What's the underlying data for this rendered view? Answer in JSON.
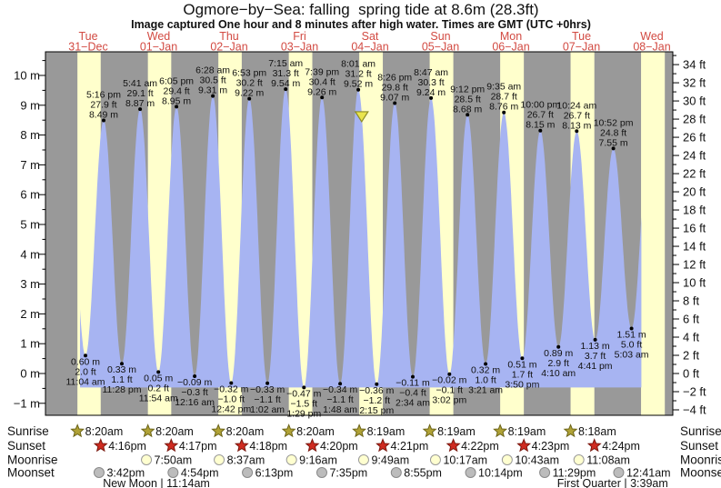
{
  "chart_data": {
    "type": "area",
    "title": "Ogmore−by−Sea: falling  spring tide at 8.6m (28.3ft)",
    "subtitle": "Image captured One hour and 8 minutes after high water. Times are GMT (UTC +0hrs)",
    "y_axis_left": {
      "unit": "m",
      "tick_step": 1,
      "ticks": [
        -1,
        0,
        1,
        2,
        3,
        4,
        5,
        6,
        7,
        8,
        9,
        10
      ],
      "range_m": [
        -1.4,
        10.79
      ]
    },
    "y_axis_right": {
      "unit": "ft",
      "tick_step": 2,
      "ticks": [
        -4,
        -2,
        0,
        2,
        4,
        6,
        8,
        10,
        12,
        14,
        16,
        18,
        20,
        22,
        24,
        26,
        28,
        30,
        32,
        34
      ]
    },
    "days": [
      {
        "dow": "Tue",
        "date": "31−Dec"
      },
      {
        "dow": "Wed",
        "date": "01−Jan"
      },
      {
        "dow": "Thu",
        "date": "02−Jan"
      },
      {
        "dow": "Fri",
        "date": "03−Jan"
      },
      {
        "dow": "Sat",
        "date": "04−Jan"
      },
      {
        "dow": "Sun",
        "date": "05−Jan"
      },
      {
        "dow": "Mon",
        "date": "06−Jan"
      },
      {
        "dow": "Tue",
        "date": "07−Jan"
      },
      {
        "dow": "Wed",
        "date": "08−Jan"
      }
    ],
    "tide_events": [
      {
        "day": 0,
        "hour": 11.0667,
        "type": "low",
        "value_m": 0.6,
        "labels": [
          "0.60 m",
          "2.0 ft",
          "11:04 am"
        ]
      },
      {
        "day": 0,
        "hour": 17.2667,
        "type": "high",
        "value_m": 8.49,
        "labels": [
          "5:16 pm",
          "27.9 ft",
          "8.49 m"
        ]
      },
      {
        "day": 0,
        "hour": 23.4667,
        "type": "low",
        "value_m": 0.33,
        "labels": [
          "0.33 m",
          "1.1 ft",
          "11:28 pm"
        ]
      },
      {
        "day": 1,
        "hour": 5.6833,
        "type": "high",
        "value_m": 8.87,
        "labels": [
          "5:41 am",
          "29.1 ft",
          "8.87 m"
        ]
      },
      {
        "day": 1,
        "hour": 11.9,
        "type": "low",
        "value_m": 0.05,
        "labels": [
          "0.05 m",
          "0.2 ft",
          "11:54 am"
        ]
      },
      {
        "day": 1,
        "hour": 18.0833,
        "type": "high",
        "value_m": 8.95,
        "labels": [
          "6:05 pm",
          "29.4 ft",
          "8.95 m"
        ]
      },
      {
        "day": 2,
        "hour": 0.2667,
        "type": "low",
        "value_m": -0.09,
        "labels": [
          "−0.09 m",
          "−0.3 ft",
          "12:16 am"
        ]
      },
      {
        "day": 2,
        "hour": 6.4667,
        "type": "high",
        "value_m": 9.31,
        "labels": [
          "6:28 am",
          "30.5 ft",
          "9.31 m"
        ]
      },
      {
        "day": 2,
        "hour": 12.7,
        "type": "low",
        "value_m": -0.32,
        "labels": [
          "−0.32 m",
          "−1.0 ft",
          "12:42 pm"
        ]
      },
      {
        "day": 2,
        "hour": 18.8833,
        "type": "high",
        "value_m": 9.22,
        "labels": [
          "6:53 pm",
          "30.2 ft",
          "9.22 m"
        ]
      },
      {
        "day": 3,
        "hour": 1.0333,
        "type": "low",
        "value_m": -0.33,
        "labels": [
          "−0.33 m",
          "−1.1 ft",
          "1:02 am"
        ]
      },
      {
        "day": 3,
        "hour": 7.25,
        "type": "high",
        "value_m": 9.54,
        "labels": [
          "7:15 am",
          "31.3 ft",
          "9.54 m"
        ]
      },
      {
        "day": 3,
        "hour": 13.4833,
        "type": "low",
        "value_m": -0.47,
        "labels": [
          "−0.47 m",
          "−1.5 ft",
          "1:29 pm"
        ]
      },
      {
        "day": 3,
        "hour": 19.65,
        "type": "high",
        "value_m": 9.26,
        "labels": [
          "7:39 pm",
          "30.4 ft",
          "9.26 m"
        ]
      },
      {
        "day": 4,
        "hour": 1.8,
        "type": "low",
        "value_m": -0.34,
        "labels": [
          "−0.34 m",
          "−1.1 ft",
          "1:48 am"
        ]
      },
      {
        "day": 4,
        "hour": 8.0167,
        "type": "high",
        "value_m": 9.52,
        "labels": [
          "8:01 am",
          "31.2 ft",
          "9.52 m"
        ]
      },
      {
        "day": 4,
        "hour": 14.25,
        "type": "low",
        "value_m": -0.36,
        "labels": [
          "−0.36 m",
          "−1.2 ft",
          "2:15 pm"
        ]
      },
      {
        "day": 4,
        "hour": 20.4333,
        "type": "high",
        "value_m": 9.07,
        "labels": [
          "8:26 pm",
          "29.8 ft",
          "9.07 m"
        ]
      },
      {
        "day": 5,
        "hour": 2.5667,
        "type": "low",
        "value_m": -0.11,
        "labels": [
          "−0.11 m",
          "−0.4 ft",
          "2:34 am"
        ]
      },
      {
        "day": 5,
        "hour": 8.7833,
        "type": "high",
        "value_m": 9.24,
        "labels": [
          "8:47 am",
          "30.3 ft",
          "9.24 m"
        ]
      },
      {
        "day": 5,
        "hour": 15.0333,
        "type": "low",
        "value_m": -0.02,
        "labels": [
          "−0.02 m",
          "−0.1 ft",
          "3:02 pm"
        ]
      },
      {
        "day": 5,
        "hour": 21.2,
        "type": "high",
        "value_m": 8.68,
        "labels": [
          "9:12 pm",
          "28.5 ft",
          "8.68 m"
        ]
      },
      {
        "day": 6,
        "hour": 3.35,
        "type": "low",
        "value_m": 0.32,
        "labels": [
          "0.32 m",
          "1.0 ft",
          "3:21 am"
        ]
      },
      {
        "day": 6,
        "hour": 9.5833,
        "type": "high",
        "value_m": 8.76,
        "labels": [
          "9:35 am",
          "28.7 ft",
          "8.76 m"
        ]
      },
      {
        "day": 6,
        "hour": 15.8333,
        "type": "low",
        "value_m": 0.51,
        "labels": [
          "0.51 m",
          "1.7 ft",
          "3:50 pm"
        ]
      },
      {
        "day": 6,
        "hour": 22.0,
        "type": "high",
        "value_m": 8.15,
        "labels": [
          "10:00 pm",
          "26.7 ft",
          "8.15 m"
        ]
      },
      {
        "day": 7,
        "hour": 4.1667,
        "type": "low",
        "value_m": 0.89,
        "labels": [
          "0.89 m",
          "2.9 ft",
          "4:10 am"
        ]
      },
      {
        "day": 7,
        "hour": 10.4,
        "type": "high",
        "value_m": 8.13,
        "labels": [
          "10:24 am",
          "26.7 ft",
          "8.13 m"
        ]
      },
      {
        "day": 7,
        "hour": 16.6833,
        "type": "low",
        "value_m": 1.13,
        "labels": [
          "1.13 m",
          "3.7 ft",
          "4:41 pm"
        ]
      },
      {
        "day": 7,
        "hour": 22.8667,
        "type": "high",
        "value_m": 7.55,
        "labels": [
          "10:52 pm",
          "24.8 ft",
          "7.55 m"
        ]
      },
      {
        "day": 8,
        "hour": 5.05,
        "type": "low",
        "value_m": 1.51,
        "labels": [
          "1.51 m",
          "5.0 ft",
          "5:03 am"
        ]
      }
    ],
    "current_marker": {
      "day": 4,
      "hour": 9.15,
      "value_m": 8.6,
      "meaning": "current tide level 8.6m (28.3ft), falling"
    },
    "curve_hints": {
      "clip_start_hour": 9.2,
      "clip_end_hour": 200.4,
      "offscreen_anchors": [
        {
          "hour_abs": 4.83,
          "value_m": 8.2
        },
        {
          "hour_abs": 203.33,
          "value_m": 8.3
        }
      ]
    },
    "colors": {
      "night_band": "#999999",
      "daylight_band": "#ffffcc",
      "tide_fill": "#a7b4f2",
      "day_label": "#d24a42",
      "marker_fill": "#e9e44d",
      "marker_stroke": "#8b8b24",
      "sunrise_star": "#b0a236",
      "sunset_star": "#cf2b20",
      "moonrise_disc": "#ffffd0",
      "moonset_disc": "#bcbcbc"
    },
    "sun_moon": {
      "row_labels": [
        "Sunrise",
        "Sunset",
        "Moonrise",
        "Moonset"
      ],
      "sunrise": [
        {
          "day": 0,
          "time": "8:20am"
        },
        {
          "day": 1,
          "time": "8:20am"
        },
        {
          "day": 2,
          "time": "8:20am"
        },
        {
          "day": 3,
          "time": "8:20am"
        },
        {
          "day": 4,
          "time": "8:19am"
        },
        {
          "day": 5,
          "time": "8:19am"
        },
        {
          "day": 6,
          "time": "8:19am"
        },
        {
          "day": 7,
          "time": "8:18am"
        }
      ],
      "sunset": [
        {
          "day": 0,
          "time": "4:16pm"
        },
        {
          "day": 1,
          "time": "4:17pm"
        },
        {
          "day": 2,
          "time": "4:18pm"
        },
        {
          "day": 3,
          "time": "4:20pm"
        },
        {
          "day": 4,
          "time": "4:21pm"
        },
        {
          "day": 5,
          "time": "4:22pm"
        },
        {
          "day": 6,
          "time": "4:23pm"
        },
        {
          "day": 7,
          "time": "4:24pm"
        }
      ],
      "moonrise": [
        {
          "day": 1,
          "time": "7:50am"
        },
        {
          "day": 2,
          "time": "8:37am"
        },
        {
          "day": 3,
          "time": "9:16am"
        },
        {
          "day": 4,
          "time": "9:49am"
        },
        {
          "day": 5,
          "time": "10:17am"
        },
        {
          "day": 6,
          "time": "10:43am"
        },
        {
          "day": 7,
          "time": "11:08am"
        }
      ],
      "moonset": [
        {
          "day": 0,
          "time": "3:42pm"
        },
        {
          "day": 1,
          "time": "4:54pm"
        },
        {
          "day": 2,
          "time": "6:13pm"
        },
        {
          "day": 3,
          "time": "7:35pm"
        },
        {
          "day": 4,
          "time": "8:55pm"
        },
        {
          "day": 5,
          "time": "10:14pm"
        },
        {
          "day": 6,
          "time": "11:29pm"
        },
        {
          "day": 8,
          "time": "12:41am"
        }
      ],
      "phases": [
        {
          "label": "New Moon",
          "time": "11:14am",
          "day": 1,
          "hour": 11.2333
        },
        {
          "label": "First Quarter",
          "time": "3:39am",
          "day": 8,
          "hour": 3.65
        }
      ]
    }
  }
}
